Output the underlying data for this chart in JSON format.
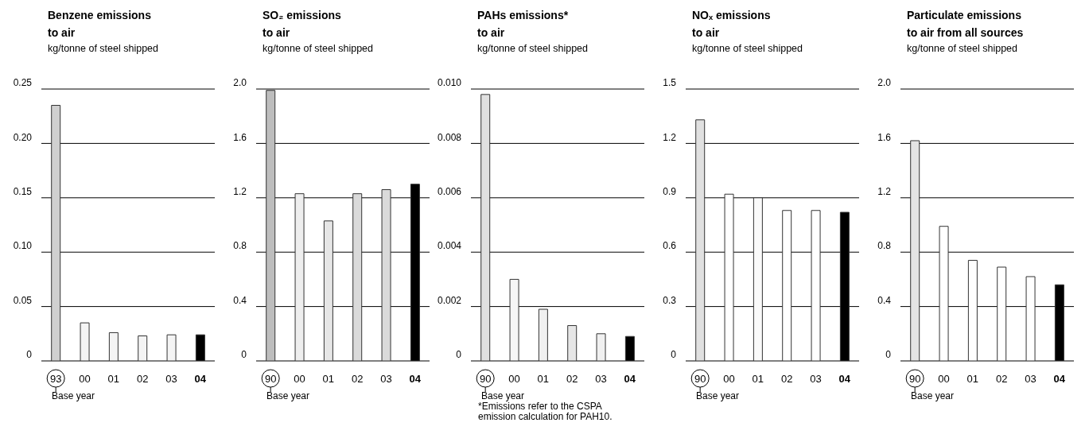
{
  "chart_data": [
    {
      "type": "bar",
      "title": "Benzene emissions\nto air",
      "subtitle": "kg/tonne of steel shipped",
      "categories": [
        "93",
        "00",
        "01",
        "02",
        "03",
        "04"
      ],
      "values": [
        0.235,
        0.035,
        0.026,
        0.023,
        0.024,
        0.024
      ],
      "colors": [
        "#d0d0d0",
        "#f4f4f4",
        "#f4f4f4",
        "#f4f4f4",
        "#f4f4f4",
        "#000000"
      ],
      "ylim": [
        0,
        0.25
      ],
      "yticks": [
        {
          "value": 0,
          "label": "0"
        },
        {
          "value": 0.05,
          "label": "0.05"
        },
        {
          "value": 0.1,
          "label": "0.10"
        },
        {
          "value": 0.15,
          "label": "0.15"
        },
        {
          "value": 0.2,
          "label": "0.20"
        },
        {
          "value": 0.25,
          "label": "0.25"
        }
      ],
      "grid": "y",
      "annotations": [
        "Base year"
      ]
    },
    {
      "type": "bar",
      "title": "SO₂ emissions\nto air",
      "subtitle": "kg/tonne of steel shipped",
      "categories": [
        "90",
        "00",
        "01",
        "02",
        "03",
        "04"
      ],
      "values": [
        1.99,
        1.23,
        1.03,
        1.23,
        1.26,
        1.3
      ],
      "colors": [
        "#bdbdbd",
        "#eeeeee",
        "#e6e6e6",
        "#dadada",
        "#dadada",
        "#000000"
      ],
      "ylim": [
        0,
        2
      ],
      "yticks": [
        {
          "value": 0,
          "label": "0"
        },
        {
          "value": 0.4,
          "label": "0.4"
        },
        {
          "value": 0.8,
          "label": "0.8"
        },
        {
          "value": 1.2,
          "label": "1.2"
        },
        {
          "value": 1.6,
          "label": "1.6"
        },
        {
          "value": 2,
          "label": "2.0"
        }
      ],
      "grid": "y",
      "annotations": [
        "Base year"
      ]
    },
    {
      "type": "bar",
      "title": "PAHs emissions*\nto air",
      "subtitle": "kg/tonne of steel shipped",
      "categories": [
        "90",
        "00",
        "01",
        "02",
        "03",
        "04"
      ],
      "values": [
        0.0098,
        0.003,
        0.0019,
        0.0013,
        0.001,
        0.0009
      ],
      "colors": [
        "#e0e0e0",
        "#f6f6f6",
        "#f0f0f0",
        "#e6e6e6",
        "#f0f0f0",
        "#000000"
      ],
      "ylim": [
        0,
        0.01
      ],
      "yticks": [
        {
          "value": 0,
          "label": "0"
        },
        {
          "value": 0.002,
          "label": "0.002"
        },
        {
          "value": 0.004,
          "label": "0.004"
        },
        {
          "value": 0.006,
          "label": "0.006"
        },
        {
          "value": 0.008,
          "label": "0.008"
        },
        {
          "value": 0.01,
          "label": "0.010"
        }
      ],
      "grid": "y",
      "annotations": [
        "Base year",
        "*Emissions refer to the CSPA\nemission calculation for PAH10."
      ]
    },
    {
      "type": "bar",
      "title": "NOₓ emissions\nto air",
      "subtitle": "kg/tonne of steel shipped",
      "categories": [
        "90",
        "00",
        "01",
        "02",
        "03",
        "04"
      ],
      "values": [
        1.33,
        0.92,
        0.9,
        0.83,
        0.83,
        0.82
      ],
      "colors": [
        "#e0e0e0",
        "#ffffff",
        "#fafafa",
        "#ffffff",
        "#ffffff",
        "#000000"
      ],
      "ylim": [
        0,
        1.5
      ],
      "yticks": [
        {
          "value": 0,
          "label": "0"
        },
        {
          "value": 0.3,
          "label": "0.3"
        },
        {
          "value": 0.6,
          "label": "0.6"
        },
        {
          "value": 0.9,
          "label": "0.9"
        },
        {
          "value": 1.2,
          "label": "1.2"
        },
        {
          "value": 1.5,
          "label": "1.5"
        }
      ],
      "grid": "y",
      "annotations": [
        "Base year"
      ]
    },
    {
      "type": "bar",
      "title": "Particulate emissions\nto air from all sources",
      "subtitle": "kg/tonne of steel shipped",
      "categories": [
        "90",
        "00",
        "01",
        "02",
        "03",
        "04"
      ],
      "values": [
        1.62,
        0.99,
        0.74,
        0.69,
        0.62,
        0.56
      ],
      "colors": [
        "#e4e4e4",
        "#ffffff",
        "#ffffff",
        "#ffffff",
        "#ffffff",
        "#000000"
      ],
      "ylim": [
        0,
        2
      ],
      "yticks": [
        {
          "value": 0,
          "label": "0"
        },
        {
          "value": 0.4,
          "label": "0.4"
        },
        {
          "value": 0.8,
          "label": "0.8"
        },
        {
          "value": 1.2,
          "label": "1.2"
        },
        {
          "value": 1.6,
          "label": "1.6"
        },
        {
          "value": 2,
          "label": "2.0"
        }
      ],
      "grid": "y",
      "annotations": [
        "Base year"
      ]
    }
  ]
}
